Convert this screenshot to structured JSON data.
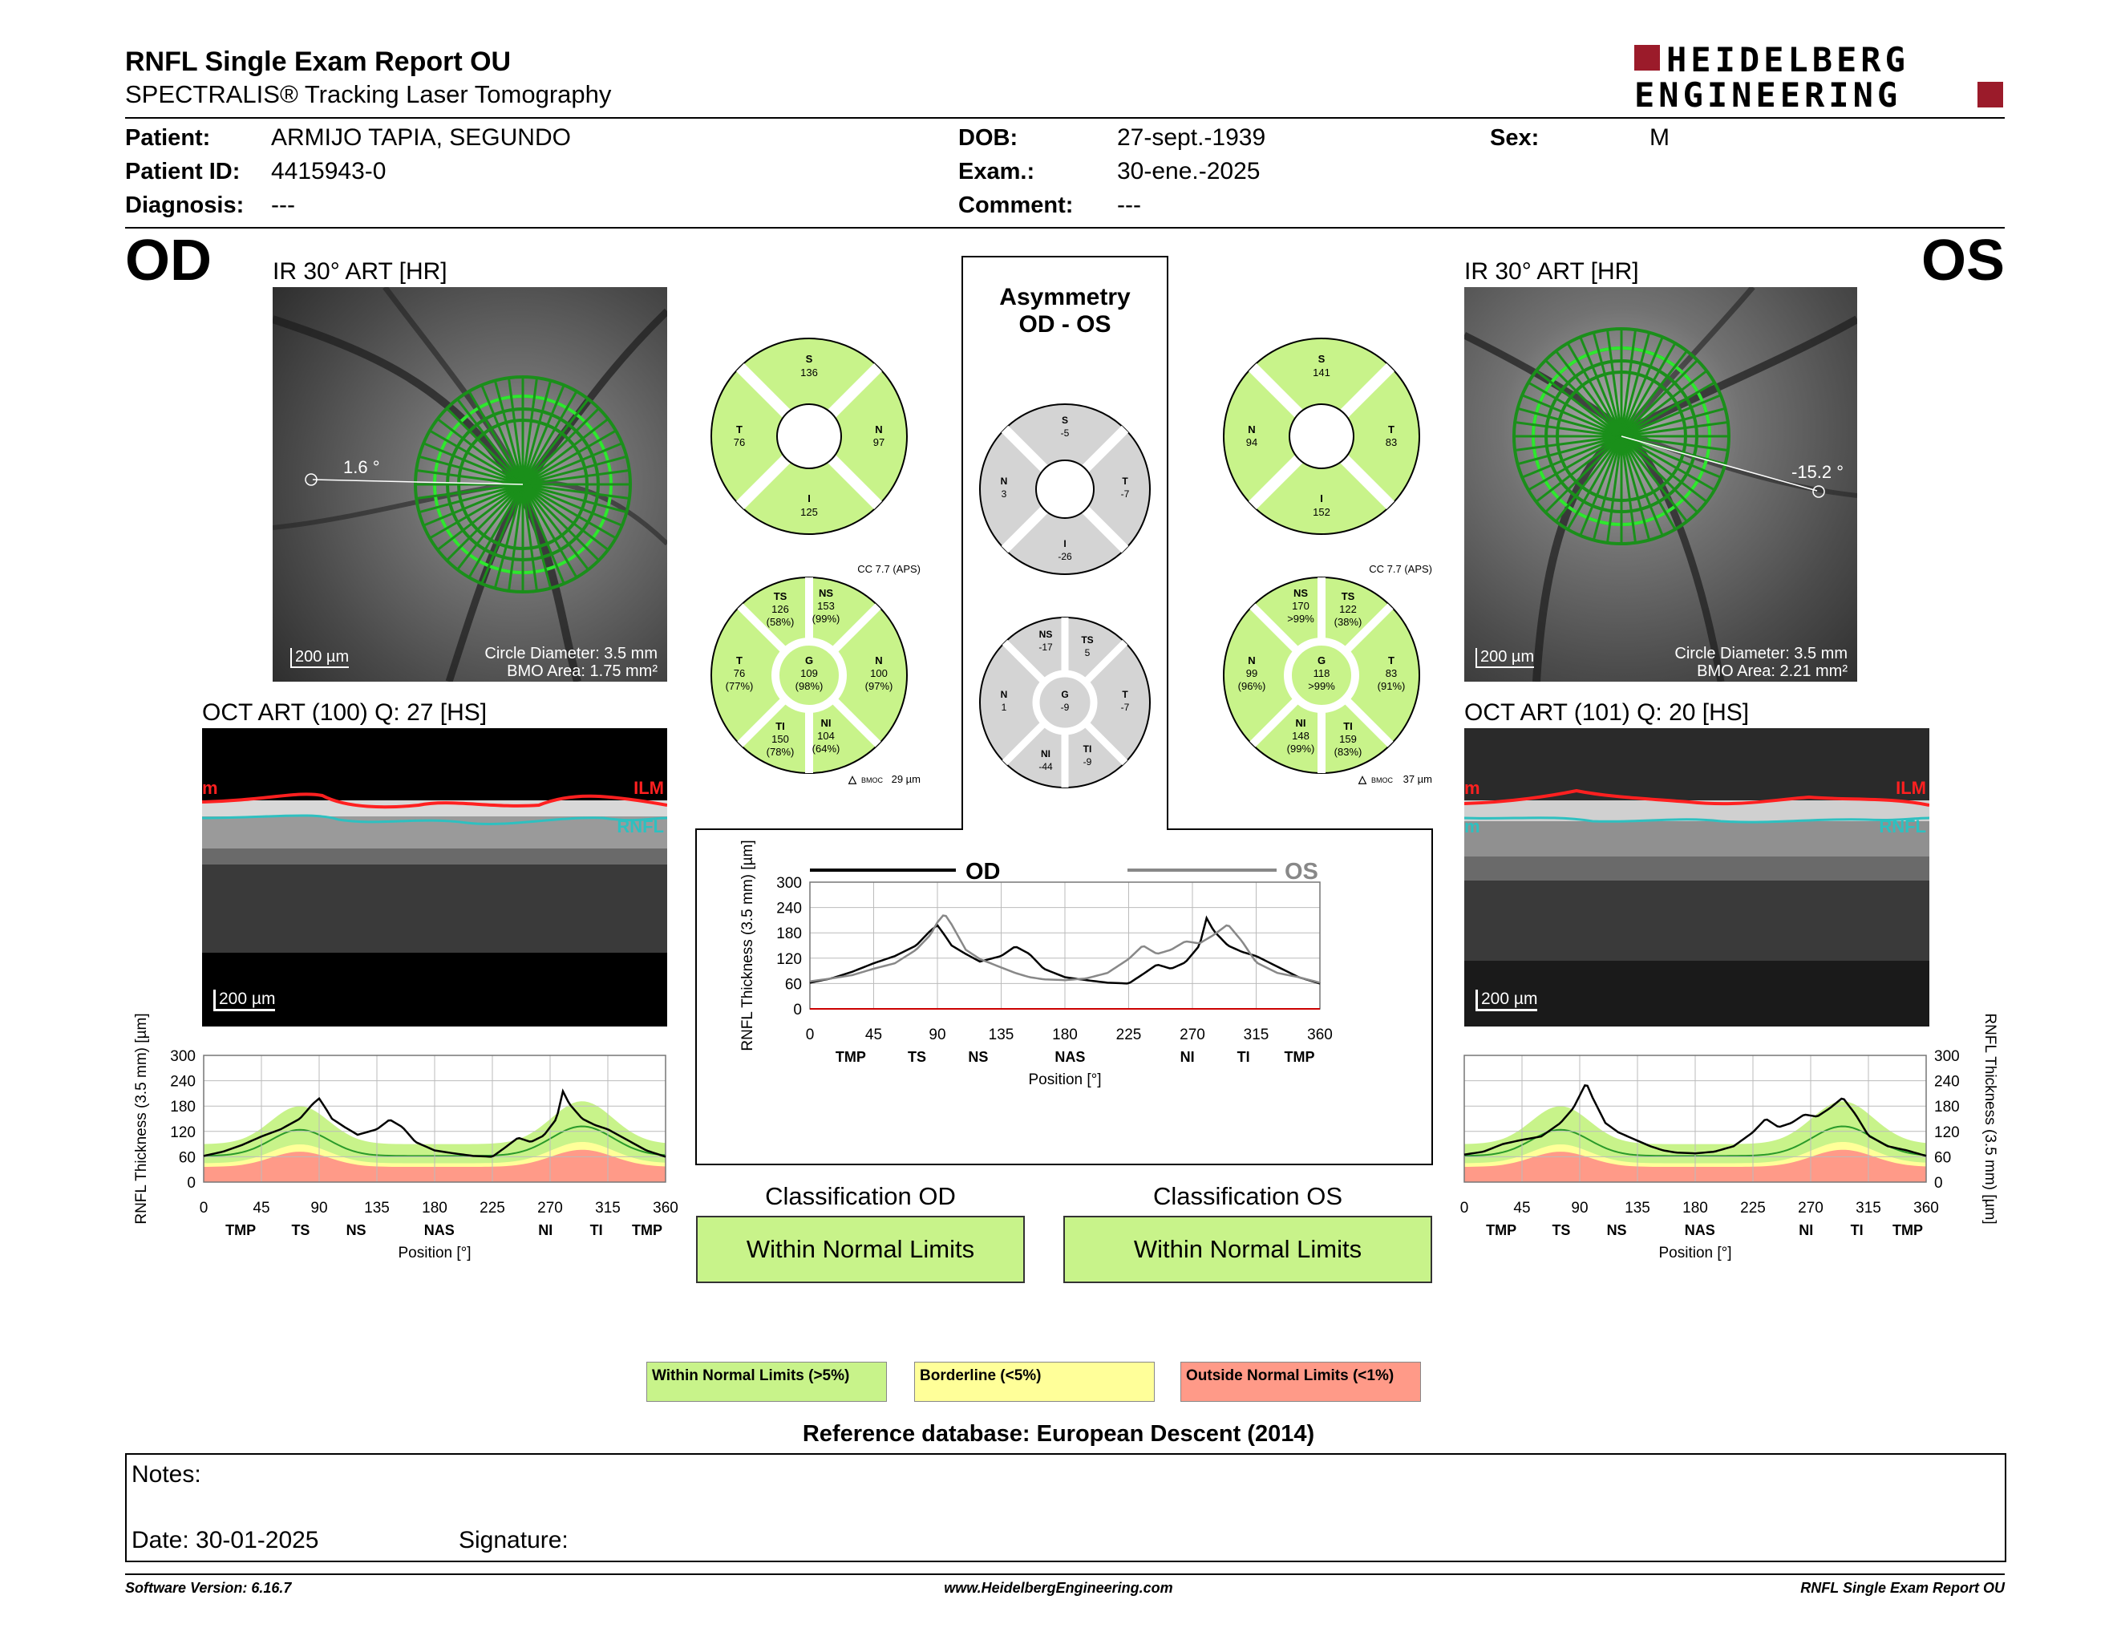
{
  "header": {
    "title": "RNFL Single Exam Report OU",
    "subtitle": "SPECTRALIS® Tracking Laser Tomography",
    "logo_line1": "HEIDELBERG",
    "logo_line2": "ENGINEERING"
  },
  "patient": {
    "patient_label": "Patient:",
    "patient_value": "ARMIJO TAPIA, SEGUNDO",
    "id_label": "Patient ID:",
    "id_value": "4415943-0",
    "diag_label": "Diagnosis:",
    "diag_value": "---",
    "dob_label": "DOB:",
    "dob_value": "27-sept.-1939",
    "exam_label": "Exam.:",
    "exam_value": "30-ene.-2025",
    "comment_label": "Comment:",
    "comment_value": "---",
    "sex_label": "Sex:",
    "sex_value": "M"
  },
  "od": {
    "eye": "OD",
    "ir_caption": "IR 30° ART [HR]",
    "angle": "1.6 °",
    "scale": "200 µm",
    "circle_diameter": "Circle Diameter: 3.5 mm",
    "bmo_area": "BMO Area: 1.75 mm²",
    "oct_caption": "OCT ART (100) Q: 27 [HS]",
    "oct_scale": "200 µm",
    "ilm": "ILM",
    "rnfl": "RNFL",
    "ilm_left": "m",
    "rnfl_left": "",
    "quad": {
      "S": "136",
      "N": "97",
      "I": "125",
      "T": "76"
    },
    "sector": {
      "TS": [
        "126",
        "(58%)"
      ],
      "NS": [
        "153",
        "(99%)"
      ],
      "N": [
        "100",
        "(97%)"
      ],
      "NI": [
        "104",
        "(64%)"
      ],
      "TI": [
        "150",
        "(78%)"
      ],
      "T": [
        "76",
        "(77%)"
      ],
      "G": [
        "109",
        "(98%)"
      ]
    },
    "cc": "CC 7.7 (APS)",
    "bmoc": "29 µm"
  },
  "os": {
    "eye": "OS",
    "ir_caption": "IR 30° ART [HR]",
    "angle": "-15.2 °",
    "scale": "200 µm",
    "circle_diameter": "Circle Diameter: 3.5 mm",
    "bmo_area": "BMO Area: 2.21 mm²",
    "oct_caption": "OCT ART (101) Q: 20 [HS]",
    "oct_scale": "200 µm",
    "ilm": "ILM",
    "rnfl": "RNFL",
    "ilm_left": "m",
    "rnfl_left": "m",
    "quad": {
      "S": "141",
      "T": "83",
      "I": "152",
      "N": "94"
    },
    "sector": {
      "NS": [
        "170",
        ">99%"
      ],
      "TS": [
        "122",
        "(38%)"
      ],
      "T": [
        "83",
        "(91%)"
      ],
      "TI": [
        "159",
        "(83%)"
      ],
      "NI": [
        "148",
        "(99%)"
      ],
      "N": [
        "99",
        "(96%)"
      ],
      "G": [
        "118",
        ">99%"
      ]
    },
    "cc": "CC 7.7 (APS)",
    "bmoc": "37 µm"
  },
  "asymmetry": {
    "title1": "Asymmetry",
    "title2": "OD - OS",
    "quad": {
      "S": "-5",
      "T": "-7",
      "I": "-26",
      "N": "3"
    },
    "sector": {
      "NS": "-17",
      "TS": "5",
      "T": "-7",
      "TI": "-9",
      "NI": "-44",
      "N": "1",
      "G": "-9"
    }
  },
  "plot_common": {
    "ylabel": "RNFL Thickness (3.5 mm) [µm]",
    "xlabel": "Position [°]",
    "yticks": [
      "0",
      "60",
      "120",
      "180",
      "240",
      "300"
    ],
    "xticks": [
      "0",
      "45",
      "90",
      "135",
      "180",
      "225",
      "270",
      "315",
      "360"
    ],
    "regions_od": [
      "TMP",
      "TS",
      "NS",
      "NAS",
      "NI",
      "TI",
      "TMP"
    ],
    "regions_os": [
      "TMP",
      "TS",
      "NS",
      "NAS",
      "NI",
      "TI",
      "TMP"
    ],
    "regions_asym": [
      "TMP",
      "TS",
      "NS",
      "NAS",
      "NI",
      "TI",
      "TMP"
    ],
    "legend_od": "OD",
    "legend_os": "OS"
  },
  "chart_data": [
    {
      "type": "line",
      "chart": "od_tsnit",
      "x": [
        0,
        15,
        30,
        45,
        60,
        75,
        85,
        90,
        95,
        100,
        110,
        120,
        135,
        145,
        155,
        165,
        180,
        195,
        210,
        225,
        235,
        245,
        255,
        265,
        275,
        280,
        285,
        295,
        305,
        315,
        330,
        345,
        360
      ],
      "series": [
        {
          "values": [
            62,
            72,
            88,
            108,
            125,
            150,
            185,
            198,
            175,
            150,
            130,
            112,
            125,
            148,
            130,
            95,
            75,
            68,
            62,
            60,
            82,
            105,
            95,
            110,
            150,
            215,
            185,
            150,
            135,
            125,
            100,
            75,
            60
          ]
        }
      ],
      "ylim": [
        0,
        300
      ],
      "xlim": [
        0,
        360
      ]
    },
    {
      "type": "line",
      "chart": "os_tsnit",
      "x": [
        0,
        15,
        30,
        45,
        60,
        75,
        85,
        90,
        95,
        100,
        110,
        120,
        135,
        145,
        155,
        165,
        180,
        195,
        210,
        225,
        235,
        245,
        255,
        265,
        275,
        285,
        295,
        305,
        315,
        330,
        345,
        360
      ],
      "series": [
        {
          "values": [
            65,
            72,
            90,
            100,
            108,
            140,
            175,
            205,
            235,
            200,
            140,
            118,
            98,
            85,
            75,
            70,
            68,
            72,
            85,
            118,
            150,
            130,
            140,
            160,
            155,
            175,
            200,
            160,
            110,
            85,
            75,
            62
          ]
        }
      ],
      "ylim": [
        0,
        300
      ],
      "xlim": [
        0,
        360
      ]
    },
    {
      "type": "line",
      "chart": "asymmetry_tsnit",
      "x": [
        0,
        15,
        30,
        45,
        60,
        75,
        85,
        90,
        95,
        100,
        110,
        120,
        135,
        145,
        155,
        165,
        180,
        195,
        210,
        225,
        235,
        245,
        255,
        265,
        275,
        280,
        285,
        295,
        305,
        315,
        330,
        345,
        360
      ],
      "series": [
        {
          "name": "OD",
          "values": [
            62,
            72,
            88,
            108,
            125,
            150,
            185,
            198,
            175,
            150,
            130,
            112,
            125,
            148,
            130,
            95,
            75,
            68,
            62,
            60,
            82,
            105,
            95,
            110,
            150,
            215,
            185,
            150,
            135,
            125,
            100,
            75,
            60
          ]
        },
        {
          "name": "OS",
          "values": [
            65,
            72,
            80,
            95,
            108,
            140,
            175,
            205,
            225,
            200,
            140,
            118,
            98,
            85,
            75,
            70,
            68,
            72,
            85,
            118,
            150,
            130,
            140,
            160,
            155,
            165,
            175,
            200,
            160,
            110,
            85,
            75,
            62
          ]
        }
      ],
      "ylim": [
        0,
        300
      ],
      "xlim": [
        0,
        360
      ]
    }
  ],
  "classification": {
    "od_label": "Classification OD",
    "od_value": "Within Normal Limits",
    "os_label": "Classification OS",
    "os_value": "Within Normal Limits"
  },
  "legend": {
    "normal": "Within Normal Limits (>5%)",
    "borderline": "Borderline (<5%)",
    "outside": "Outside Normal Limits (<1%)",
    "normal_color": "#c8f38a",
    "borderline_color": "#ffff99",
    "outside_color": "#ff9a88"
  },
  "reference": "Reference database: European Descent (2014)",
  "notes": {
    "notes_label": "Notes:",
    "date_label": "Date: 30-01-2025",
    "signature_label": "Signature:"
  },
  "footer": {
    "version": "Software Version: 6.16.7",
    "url": "www.HeidelbergEngineering.com",
    "report": "RNFL Single Exam Report OU"
  }
}
